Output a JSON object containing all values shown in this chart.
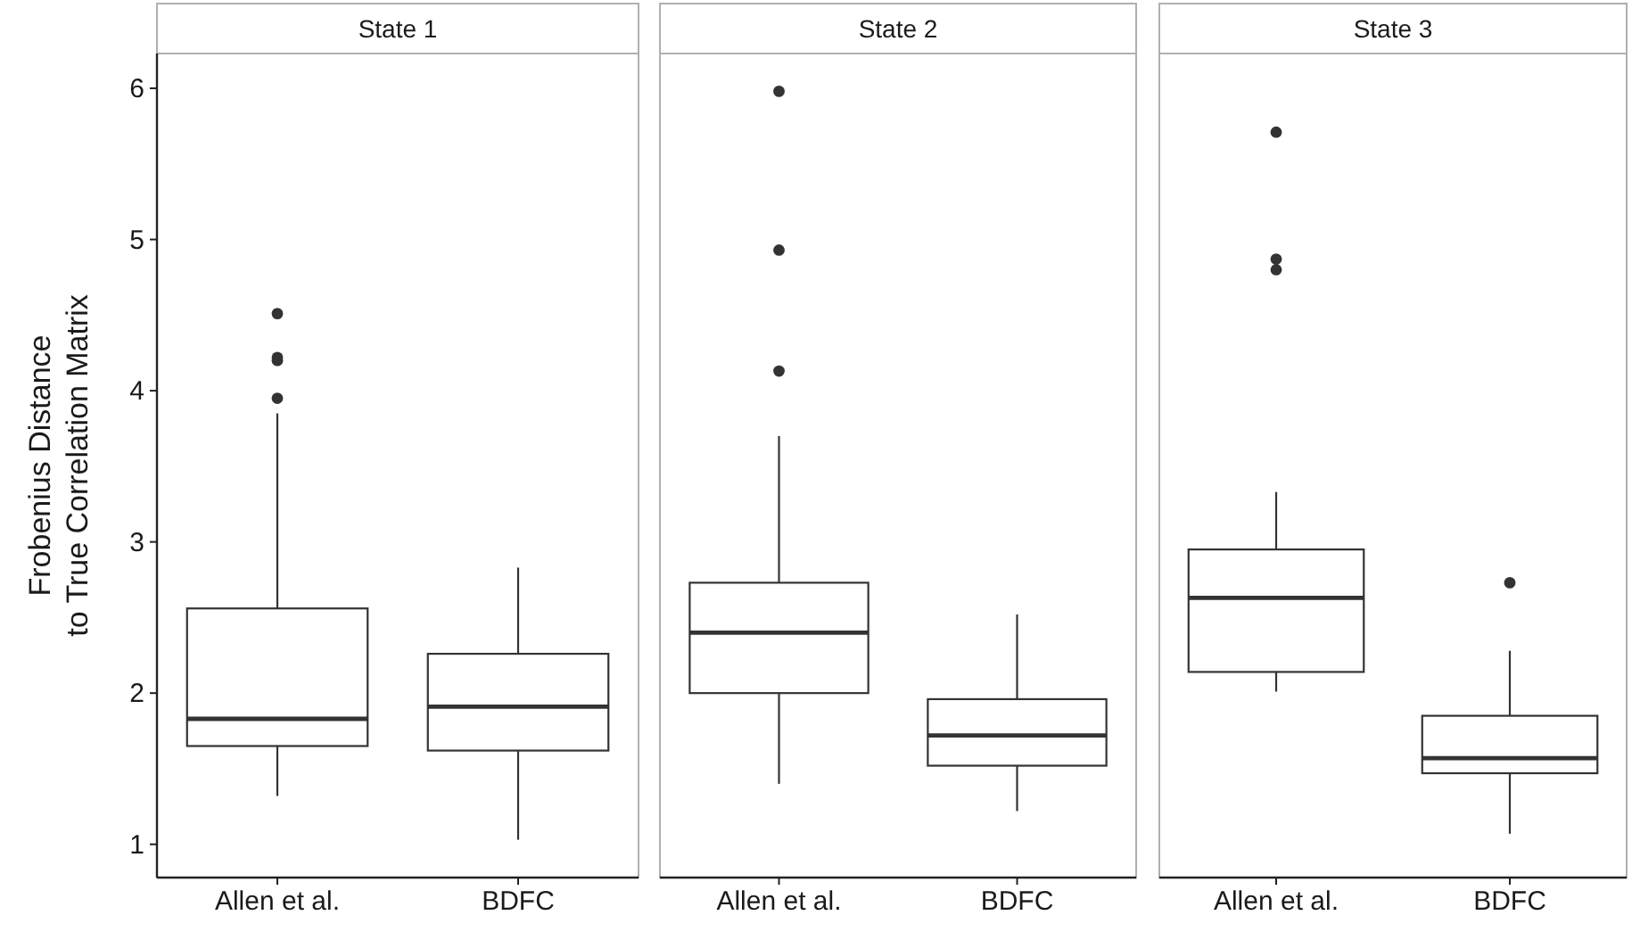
{
  "chart_data": [
    {
      "type": "box",
      "title": "State 1",
      "ylabel": "Frobenius Distance\nto True Correlation Matrix",
      "categories": [
        "Allen et al.",
        "BDFC"
      ],
      "color": "#333333",
      "ylim": [
        0.78,
        6.23
      ],
      "yticks": [
        1,
        2,
        3,
        4,
        5,
        6
      ],
      "grid": false,
      "boxes": [
        {
          "low": 1.32,
          "q1": 1.65,
          "median": 1.83,
          "q3": 2.56,
          "high": 3.85,
          "outliers": [
            3.95,
            4.2,
            4.22,
            4.51
          ]
        },
        {
          "low": 1.03,
          "q1": 1.62,
          "median": 1.91,
          "q3": 2.26,
          "high": 2.83
        }
      ]
    },
    {
      "type": "box",
      "title": "State 2",
      "categories": [
        "Allen et al.",
        "BDFC"
      ],
      "color": "#333333",
      "ylim": [
        0.78,
        6.23
      ],
      "yticks": [
        1,
        2,
        3,
        4,
        5,
        6
      ],
      "tick_labels": "x",
      "grid": false,
      "boxes": [
        {
          "low": 1.4,
          "q1": 2.0,
          "median": 2.4,
          "q3": 2.73,
          "high": 3.7,
          "outliers": [
            4.13,
            4.93,
            5.98
          ]
        },
        {
          "low": 1.22,
          "q1": 1.52,
          "median": 1.72,
          "q3": 1.96,
          "high": 2.52
        }
      ]
    },
    {
      "type": "box",
      "title": "State 3",
      "categories": [
        "Allen et al.",
        "BDFC"
      ],
      "color": "#333333",
      "ylim": [
        0.78,
        6.23
      ],
      "yticks": [
        1,
        2,
        3,
        4,
        5,
        6
      ],
      "tick_labels": "x",
      "grid": false,
      "boxes": [
        {
          "low": 2.01,
          "q1": 2.14,
          "median": 2.63,
          "q3": 2.95,
          "high": 3.33,
          "outliers": [
            4.8,
            4.87,
            5.71
          ]
        },
        {
          "low": 1.07,
          "q1": 1.47,
          "median": 1.57,
          "q3": 1.85,
          "high": 2.28,
          "outliers": [
            2.73
          ]
        }
      ]
    }
  ]
}
